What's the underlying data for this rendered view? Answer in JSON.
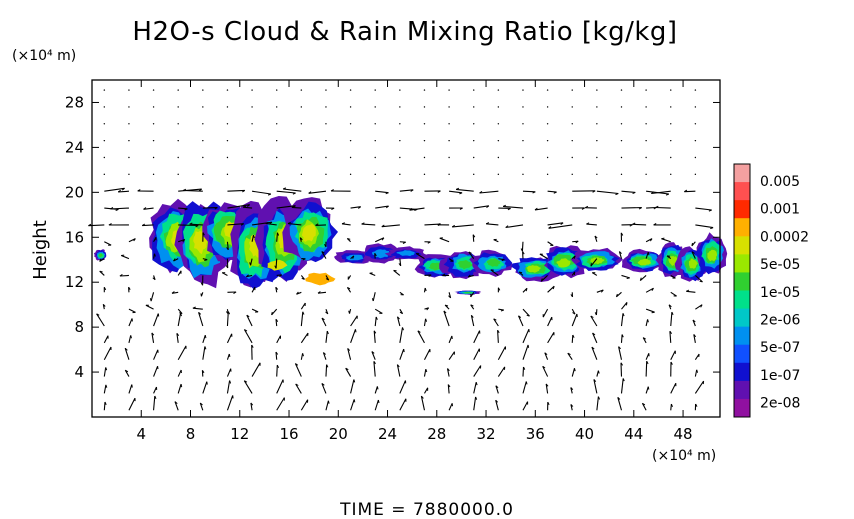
{
  "chart_data": {
    "type": "heatmap",
    "title": "H2O-s Cloud & Rain Mixing Ratio [kg/kg]",
    "xlabel": "",
    "ylabel": "Height",
    "x_unit": "(×10⁴ m)",
    "y_unit": "(×10⁴ m)",
    "xlim": [
      0,
      51
    ],
    "ylim": [
      0,
      30
    ],
    "x_ticks": [
      "4",
      "8",
      "12",
      "16",
      "20",
      "24",
      "28",
      "32",
      "36",
      "40",
      "44",
      "48"
    ],
    "y_ticks": [
      "4",
      "8",
      "12",
      "16",
      "20",
      "24",
      "28"
    ],
    "overlay": "wind vector arrows",
    "colorbar": {
      "labels": [
        "0.005",
        "0.001",
        "0.0002",
        "5e-05",
        "1e-05",
        "2e-06",
        "5e-07",
        "1e-07",
        "2e-08"
      ],
      "colors": [
        "#f4a0a0",
        "#ff5050",
        "#ff2a00",
        "#ffb000",
        "#d8e000",
        "#9ae800",
        "#30d030",
        "#00e08a",
        "#00c8c8",
        "#0090f0",
        "#1050ff",
        "#1010d0",
        "#6010b0",
        "#9010a0"
      ]
    },
    "cloud_regions": [
      {
        "x_range": [
          0.2,
          1.2
        ],
        "y_range": [
          13.8,
          15.0
        ],
        "peak": "2e-06"
      },
      {
        "x_range": [
          4.5,
          20.0
        ],
        "y_range": [
          11.5,
          19.2
        ],
        "peak": "0.0002"
      },
      {
        "x_range": [
          20.5,
          26.5
        ],
        "y_range": [
          13.5,
          15.2
        ],
        "peak": "5e-07"
      },
      {
        "x_range": [
          27.0,
          33.5
        ],
        "y_range": [
          12.5,
          15.0
        ],
        "peak": "2e-06"
      },
      {
        "x_range": [
          29.5,
          31.5
        ],
        "y_range": [
          10.8,
          11.4
        ],
        "peak": "2e-06"
      },
      {
        "x_range": [
          35.0,
          42.0
        ],
        "y_range": [
          12.3,
          15.0
        ],
        "peak": "5e-06"
      },
      {
        "x_range": [
          43.0,
          46.5
        ],
        "y_range": [
          12.5,
          15.0
        ],
        "peak": "5e-06"
      },
      {
        "x_range": [
          46.5,
          51.0
        ],
        "y_range": [
          12.0,
          16.5
        ],
        "peak": "5e-06"
      }
    ]
  },
  "footer": {
    "time": "TIME = 7880000.0"
  }
}
